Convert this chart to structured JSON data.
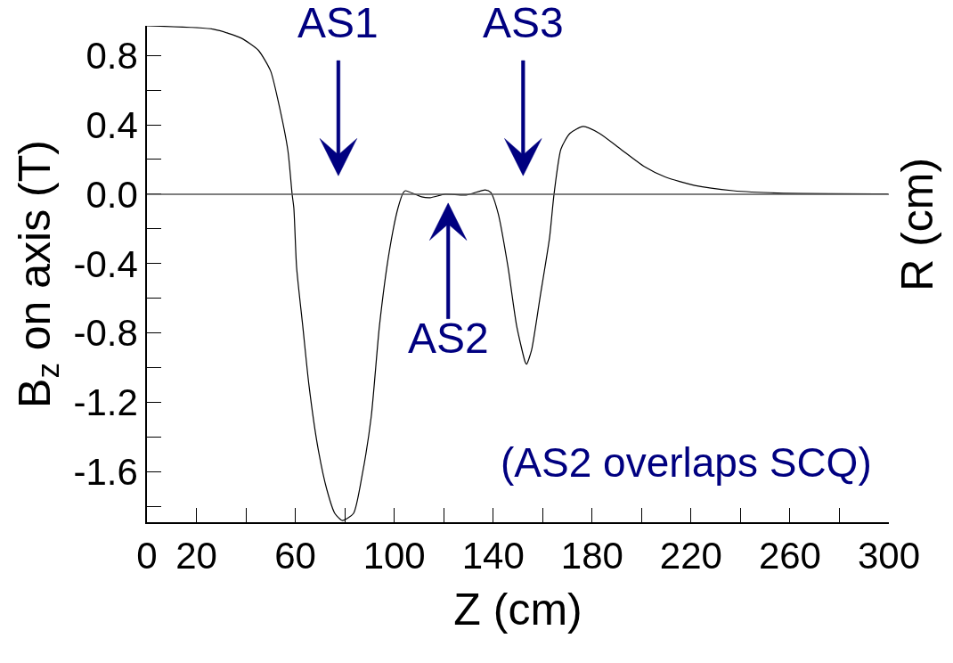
{
  "chart_data": {
    "type": "line",
    "xlabel": "Z (cm)",
    "ylabel": "B$_{z}$ on axis (T)",
    "y2label": "R (cm)",
    "x": [
      0,
      27,
      38,
      45,
      50,
      53,
      57,
      58.7,
      59.4,
      60.5,
      63,
      65.5,
      69,
      72.7,
      76,
      79,
      83.5,
      87,
      90.7,
      94,
      98,
      101.5,
      103.7,
      104.5,
      111,
      114.5,
      120.6,
      129,
      136.8,
      139,
      142,
      146,
      149.5,
      153,
      153.5,
      155.5,
      159,
      162.8,
      164.6,
      167.4,
      171,
      176.4,
      183,
      191.5,
      201,
      209.5,
      221.5,
      237,
      255,
      299.6
    ],
    "series": [
      {
        "color": "#000000",
        "values": [
          0.97,
          0.95,
          0.9,
          0.83,
          0.71,
          0.54,
          0.25,
          0.0,
          -0.08,
          -0.42,
          -0.76,
          -1.1,
          -1.45,
          -1.7,
          -1.84,
          -1.88,
          -1.84,
          -1.62,
          -1.28,
          -0.76,
          -0.33,
          -0.08,
          0.01,
          0.02,
          -0.015,
          -0.02,
          0.0,
          -0.005,
          0.025,
          0.01,
          -0.11,
          -0.42,
          -0.76,
          -0.97,
          -0.98,
          -0.9,
          -0.59,
          -0.25,
          0.0,
          0.26,
          0.35,
          0.39,
          0.35,
          0.26,
          0.16,
          0.1,
          0.05,
          0.02,
          0.007,
          0.002
        ]
      }
    ],
    "xlim": [
      0,
      300
    ],
    "xticks": [
      0,
      20,
      {
        "value": 40,
        "label": null
      },
      60,
      {
        "value": 80,
        "label": null
      },
      100,
      {
        "value": 120,
        "label": null
      },
      140,
      {
        "value": 160,
        "label": null
      },
      180,
      {
        "value": 200,
        "label": null
      },
      220,
      {
        "value": 240,
        "label": null
      },
      260,
      {
        "value": 280,
        "label": null
      },
      300
    ],
    "ylim": [
      -1.89,
      0.97
    ],
    "yticks": [
      {
        "value": -1.8,
        "label": null
      },
      -1.6,
      {
        "value": -1.4,
        "label": null
      },
      -1.2,
      {
        "value": -1.0,
        "label": null
      },
      -0.8,
      {
        "value": -0.6,
        "label": null
      },
      -0.4,
      {
        "value": -0.2,
        "label": null
      },
      {
        "value": 0,
        "label": "0.0"
      },
      {
        "value": 0.2,
        "label": null
      },
      0.4,
      {
        "value": 0.6,
        "label": null
      },
      0.8
    ],
    "marker": "none",
    "line_style": "solid",
    "ref_lines": [
      {
        "axis": "y",
        "value": 0,
        "color": "#555555"
      }
    ],
    "annotations": [
      "AS1",
      "AS3",
      "AS2",
      "(AS2 overlaps SCQ)"
    ]
  }
}
